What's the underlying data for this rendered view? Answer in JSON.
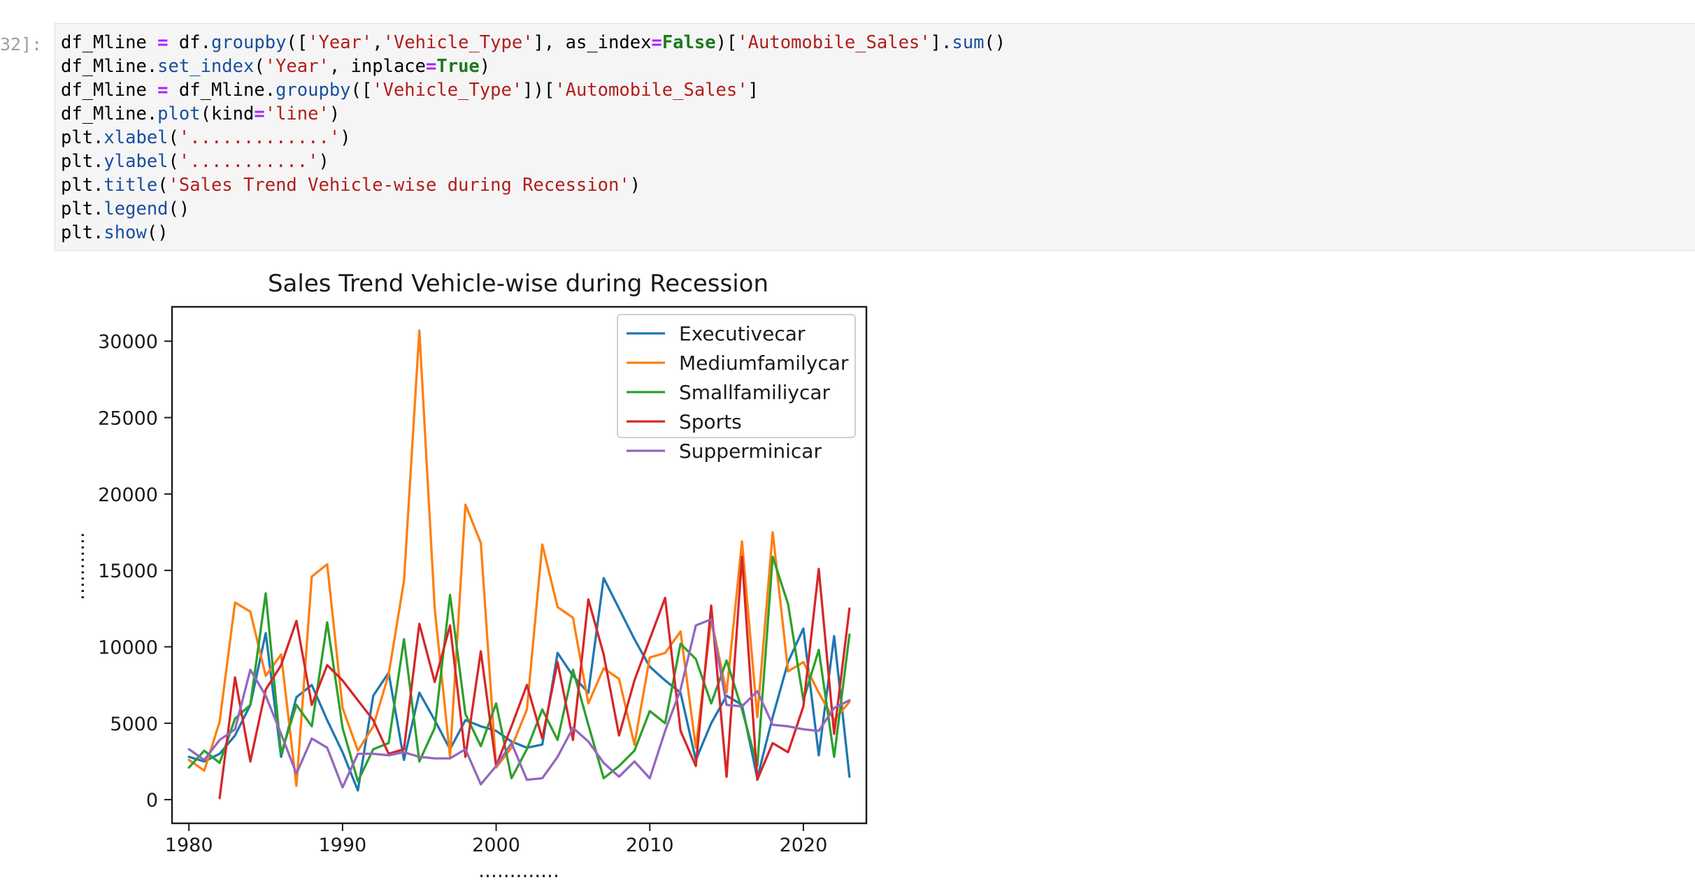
{
  "cell": {
    "prompt": "32]:",
    "code_lines": [
      [
        {
          "t": "df_Mline "
        },
        {
          "t": "=",
          "c": "op"
        },
        {
          "t": " df."
        },
        {
          "t": "groupby",
          "c": "fn"
        },
        {
          "t": "(["
        },
        {
          "t": "'Year'",
          "c": "str"
        },
        {
          "t": ","
        },
        {
          "t": "'Vehicle_Type'",
          "c": "str"
        },
        {
          "t": "], as_index"
        },
        {
          "t": "=",
          "c": "op"
        },
        {
          "t": "False",
          "c": "kw"
        },
        {
          "t": ")["
        },
        {
          "t": "'Automobile_Sales'",
          "c": "str"
        },
        {
          "t": "]."
        },
        {
          "t": "sum",
          "c": "fn"
        },
        {
          "t": "()"
        }
      ],
      [
        {
          "t": "df_Mline."
        },
        {
          "t": "set_index",
          "c": "fn"
        },
        {
          "t": "("
        },
        {
          "t": "'Year'",
          "c": "str"
        },
        {
          "t": ", inplace"
        },
        {
          "t": "=",
          "c": "op"
        },
        {
          "t": "True",
          "c": "kw"
        },
        {
          "t": ")"
        }
      ],
      [
        {
          "t": "df_Mline "
        },
        {
          "t": "=",
          "c": "op"
        },
        {
          "t": " df_Mline."
        },
        {
          "t": "groupby",
          "c": "fn"
        },
        {
          "t": "(["
        },
        {
          "t": "'Vehicle_Type'",
          "c": "str"
        },
        {
          "t": "])["
        },
        {
          "t": "'Automobile_Sales'",
          "c": "str"
        },
        {
          "t": "]"
        }
      ],
      [
        {
          "t": "df_Mline."
        },
        {
          "t": "plot",
          "c": "fn"
        },
        {
          "t": "(kind"
        },
        {
          "t": "=",
          "c": "op"
        },
        {
          "t": "'line'",
          "c": "str"
        },
        {
          "t": ")"
        }
      ],
      [
        {
          "t": "plt."
        },
        {
          "t": "xlabel",
          "c": "fn"
        },
        {
          "t": "("
        },
        {
          "t": "'.............'",
          "c": "str"
        },
        {
          "t": ")"
        }
      ],
      [
        {
          "t": "plt."
        },
        {
          "t": "ylabel",
          "c": "fn"
        },
        {
          "t": "("
        },
        {
          "t": "'...........'",
          "c": "str"
        },
        {
          "t": ")"
        }
      ],
      [
        {
          "t": "plt."
        },
        {
          "t": "title",
          "c": "fn"
        },
        {
          "t": "("
        },
        {
          "t": "'Sales Trend Vehicle-wise during Recession'",
          "c": "str"
        },
        {
          "t": ")"
        }
      ],
      [
        {
          "t": "plt."
        },
        {
          "t": "legend",
          "c": "fn"
        },
        {
          "t": "()"
        }
      ],
      [
        {
          "t": "plt."
        },
        {
          "t": "show",
          "c": "fn"
        },
        {
          "t": "()"
        }
      ]
    ]
  },
  "colors": {
    "fn": "#1a4e9c",
    "str": "#b21d1d",
    "op": "#aa22ff",
    "kw": "#1d7a1d",
    "prompt": "#9e9e9e"
  },
  "chart_data": {
    "type": "line",
    "title": "Sales Trend Vehicle-wise during Recession",
    "xlabel": ".............",
    "ylabel": "...........",
    "xlim": [
      1978.9,
      2024.1
    ],
    "ylim": [
      -1550,
      32250
    ],
    "xticks": [
      1980,
      1990,
      2000,
      2010,
      2020
    ],
    "yticks": [
      0,
      5000,
      10000,
      15000,
      20000,
      25000,
      30000
    ],
    "legend_position": "top-right",
    "grid": false,
    "series": [
      {
        "name": "Executivecar",
        "color": "#1f77b4",
        "x": [
          1980,
          1981,
          1982,
          1983,
          1984,
          1985,
          1986,
          1987,
          1988,
          1989,
          1990,
          1991,
          1992,
          1993,
          1994,
          1995,
          1996,
          1997,
          1998,
          1999,
          2000,
          2001,
          2002,
          2003,
          2004,
          2005,
          2006,
          2007,
          2008,
          2009,
          2010,
          2011,
          2012,
          2013,
          2014,
          2015,
          2016,
          2017,
          2018,
          2019,
          2020,
          2021,
          2022,
          2023
        ],
        "y": [
          2800,
          2500,
          3000,
          4200,
          6200,
          10900,
          2800,
          6700,
          7500,
          5200,
          3100,
          600,
          6800,
          8300,
          2600,
          7000,
          5200,
          3300,
          5200,
          4800,
          4500,
          3800,
          3400,
          3600,
          9600,
          8100,
          7000,
          14500,
          12500,
          10500,
          8700,
          7800,
          7000,
          2600,
          5000,
          6800,
          6200,
          1400,
          5400,
          9000,
          11200,
          2900,
          10700,
          1500
        ]
      },
      {
        "name": "Mediumfamilycar",
        "color": "#ff7f0e",
        "x": [
          1980,
          1981,
          1982,
          1983,
          1984,
          1985,
          1986,
          1987,
          1988,
          1989,
          1990,
          1991,
          1992,
          1993,
          1994,
          1995,
          1996,
          1997,
          1998,
          1999,
          2000,
          2001,
          2002,
          2003,
          2004,
          2005,
          2006,
          2007,
          2008,
          2009,
          2010,
          2011,
          2012,
          2013,
          2014,
          2015,
          2016,
          2017,
          2018,
          2019,
          2020,
          2021,
          2022,
          2023
        ],
        "y": [
          2600,
          1900,
          5100,
          12900,
          12300,
          8100,
          9500,
          900,
          14600,
          15400,
          6000,
          3200,
          4800,
          8200,
          14300,
          30700,
          12500,
          2800,
          19300,
          16800,
          2100,
          3400,
          5900,
          16700,
          12600,
          11900,
          6300,
          8600,
          7900,
          3600,
          9300,
          9600,
          11000,
          3400,
          11800,
          7000,
          16900,
          5400,
          17500,
          8400,
          9000,
          7000,
          5200,
          6400
        ]
      },
      {
        "name": "Smallfamiliycar",
        "color": "#2ca02c",
        "x": [
          1980,
          1981,
          1982,
          1983,
          1984,
          1985,
          1986,
          1987,
          1988,
          1989,
          1990,
          1991,
          1992,
          1993,
          1994,
          1995,
          1996,
          1997,
          1998,
          1999,
          2000,
          2001,
          2002,
          2003,
          2004,
          2005,
          2006,
          2007,
          2008,
          2009,
          2010,
          2011,
          2012,
          2013,
          2014,
          2015,
          2016,
          2017,
          2018,
          2019,
          2020,
          2021,
          2022,
          2023
        ],
        "y": [
          2100,
          3200,
          2400,
          5300,
          6200,
          13500,
          3000,
          6200,
          4800,
          11600,
          4700,
          1200,
          3300,
          3700,
          10500,
          2500,
          4700,
          13400,
          5600,
          3500,
          6300,
          1400,
          3300,
          5900,
          3900,
          8500,
          4900,
          1400,
          2200,
          3200,
          5800,
          5000,
          10200,
          9200,
          6300,
          9100,
          5900,
          2200,
          15900,
          12800,
          6500,
          9800,
          2800,
          10800
        ]
      },
      {
        "name": "Sports",
        "color": "#d62728",
        "x": [
          1982,
          1983,
          1984,
          1985,
          1986,
          1987,
          1988,
          1989,
          1990,
          1991,
          1992,
          1993,
          1994,
          1995,
          1996,
          1997,
          1998,
          1999,
          2000,
          2001,
          2002,
          2003,
          2004,
          2005,
          2006,
          2007,
          2008,
          2009,
          2010,
          2011,
          2012,
          2013,
          2014,
          2015,
          2016,
          2017,
          2018,
          2019,
          2020,
          2021,
          2022,
          2023
        ],
        "y": [
          100,
          8000,
          2500,
          7200,
          8800,
          11700,
          6200,
          8800,
          7800,
          6500,
          5200,
          3000,
          3300,
          11500,
          7700,
          11400,
          2800,
          9700,
          2200,
          4800,
          7500,
          4000,
          9000,
          3900,
          13100,
          9500,
          4200,
          7800,
          10500,
          13200,
          4500,
          2200,
          12700,
          1500,
          15900,
          1300,
          3700,
          3100,
          6100,
          15100,
          4300,
          12500
        ]
      },
      {
        "name": "Supperminicar",
        "color": "#9467bd",
        "x": [
          1980,
          1981,
          1982,
          1983,
          1984,
          1985,
          1986,
          1987,
          1988,
          1989,
          1990,
          1991,
          1992,
          1993,
          1994,
          1995,
          1996,
          1997,
          1998,
          1999,
          2000,
          2001,
          2002,
          2003,
          2004,
          2005,
          2006,
          2007,
          2008,
          2009,
          2010,
          2011,
          2012,
          2013,
          2014,
          2015,
          2016,
          2017,
          2018,
          2019,
          2020,
          2021,
          2022,
          2023
        ],
        "y": [
          3300,
          2600,
          3900,
          4600,
          8500,
          6800,
          4300,
          1700,
          4000,
          3400,
          800,
          3000,
          3000,
          2900,
          3100,
          2800,
          2700,
          2700,
          3300,
          1000,
          2200,
          3700,
          1300,
          1400,
          2800,
          4700,
          3800,
          2400,
          1500,
          2500,
          1400,
          4500,
          7200,
          11400,
          11800,
          6200,
          6100,
          7100,
          4900,
          4800,
          4600,
          4500,
          6000,
          6500
        ]
      }
    ]
  }
}
